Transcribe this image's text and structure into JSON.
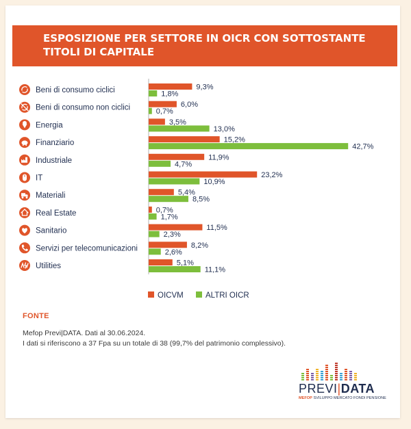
{
  "title": {
    "line1": "ESPOSIZIONE PER SETTORE IN OICR CON SOTTOSTANTE",
    "line2": "TITOLI DI CAPITALE"
  },
  "colors": {
    "oicvm": "#e0552a",
    "altri": "#7dbe3c",
    "text": "#1f2d4f",
    "icon": "#e0552a"
  },
  "chart_data": {
    "type": "bar",
    "orientation": "horizontal",
    "categories": [
      "Beni di consumo ciclici",
      "Beni di consumo non ciclici",
      "Energia",
      "Finanziario",
      "Industriale",
      "IT",
      "Materiali",
      "Real Estate",
      "Sanitario",
      "Servizi per telecomunicazioni",
      "Utilities"
    ],
    "icons": [
      "recycle-icon",
      "no-recycle-icon",
      "ice-cream-icon",
      "piggy-bank-icon",
      "factory-icon",
      "mouse-icon",
      "truck-icon",
      "house-icon",
      "heart-icon",
      "phone-icon",
      "energy-icon"
    ],
    "series": [
      {
        "name": "OICVM",
        "values": [
          9.3,
          6.0,
          3.5,
          15.2,
          11.9,
          23.2,
          5.4,
          0.7,
          11.5,
          8.2,
          5.1
        ],
        "labels": [
          "9,3%",
          "6,0%",
          "3,5%",
          "15,2%",
          "11,9%",
          "23,2%",
          "5,4%",
          "0,7%",
          "11,5%",
          "8,2%",
          "5,1%"
        ]
      },
      {
        "name": "ALTRI OICR",
        "values": [
          1.8,
          0.7,
          13.0,
          42.7,
          4.7,
          10.9,
          8.5,
          1.7,
          2.3,
          2.6,
          11.1
        ],
        "labels": [
          "1,8%",
          "0,7%",
          "13,0%",
          "42,7%",
          "4,7%",
          "10,9%",
          "8,5%",
          "1,7%",
          "2,3%",
          "2,6%",
          "11,1%"
        ]
      }
    ],
    "xlim": [
      0,
      42.7
    ],
    "legend": "bottom",
    "grid": false
  },
  "source": {
    "heading": "FONTE",
    "line1": "Mefop Previ|DATA. Dati al 30.06.2024.",
    "line2": "I dati si riferiscono a 37 Fpa su un totale di 38 (99,7% del patrimonio complessivo)."
  },
  "logo": {
    "previ": "PREVI",
    "data": "DATA",
    "sub_brand": "MEFOP",
    "sub_text": "SVILUPPO MERCATO FONDI PENSIONE"
  }
}
